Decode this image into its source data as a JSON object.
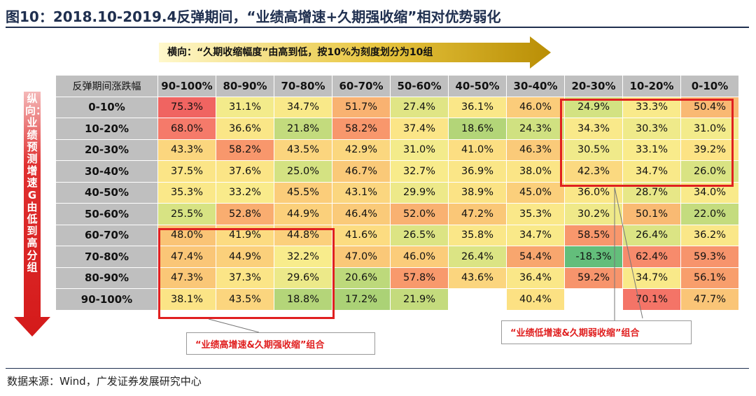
{
  "title": "图10：2018.10-2019.4反弹期间，“业绩高增速+久期强收缩”相对优势弱化",
  "h_axis_note": "横向：“久期收缩幅度”由高到低，按10%为刻度划分为10组",
  "v_axis_note": "纵向：业绩预测增速G由低到高分组",
  "source": "数据来源：Wind，广发证券发展研究中心",
  "box_label_left": "“业绩高增速&久期强收缩”组合",
  "box_label_right": "“业绩低增速&久期弱收缩”组合",
  "colors": {
    "red": "#e02020",
    "arrow_gold": "#c9a008",
    "header_gray": "#bfbfbf",
    "title_navy": "#1f2f4f"
  },
  "chart_data": {
    "type": "heatmap",
    "corner_label": "反弹期间涨跌幅",
    "columns": [
      "90-100%",
      "80-90%",
      "70-80%",
      "60-70%",
      "50-60%",
      "40-50%",
      "30-40%",
      "20-30%",
      "10-20%",
      "0-10%"
    ],
    "rows": [
      "0-10%",
      "10-20%",
      "20-30%",
      "30-40%",
      "40-50%",
      "50-60%",
      "60-70%",
      "70-80%",
      "80-90%",
      "90-100%"
    ],
    "values": [
      [
        75.3,
        31.1,
        34.7,
        51.7,
        27.4,
        36.1,
        46.0,
        24.9,
        33.3,
        50.4
      ],
      [
        68.0,
        36.6,
        21.8,
        58.2,
        37.4,
        18.6,
        24.3,
        34.3,
        30.3,
        31.0
      ],
      [
        43.3,
        58.2,
        43.5,
        42.9,
        31.0,
        41.0,
        46.3,
        30.5,
        33.1,
        39.2
      ],
      [
        37.5,
        37.6,
        25.0,
        46.7,
        32.7,
        36.9,
        38.0,
        42.3,
        34.7,
        26.0
      ],
      [
        35.3,
        33.2,
        45.5,
        43.1,
        29.9,
        38.9,
        45.0,
        36.0,
        28.7,
        34.0
      ],
      [
        25.5,
        52.8,
        44.9,
        46.4,
        52.0,
        47.2,
        35.3,
        30.2,
        50.1,
        22.0
      ],
      [
        48.0,
        41.9,
        44.8,
        41.6,
        26.5,
        35.8,
        34.7,
        58.5,
        26.4,
        36.2
      ],
      [
        47.4,
        44.9,
        32.2,
        47.0,
        46.0,
        26.4,
        54.4,
        -18.3,
        62.4,
        59.3
      ],
      [
        47.3,
        37.3,
        29.6,
        20.6,
        57.8,
        43.6,
        36.4,
        59.2,
        34.7,
        56.1
      ],
      [
        38.1,
        43.5,
        18.8,
        17.2,
        21.9,
        null,
        40.4,
        null,
        70.1,
        47.7
      ]
    ],
    "value_unit": "%"
  }
}
